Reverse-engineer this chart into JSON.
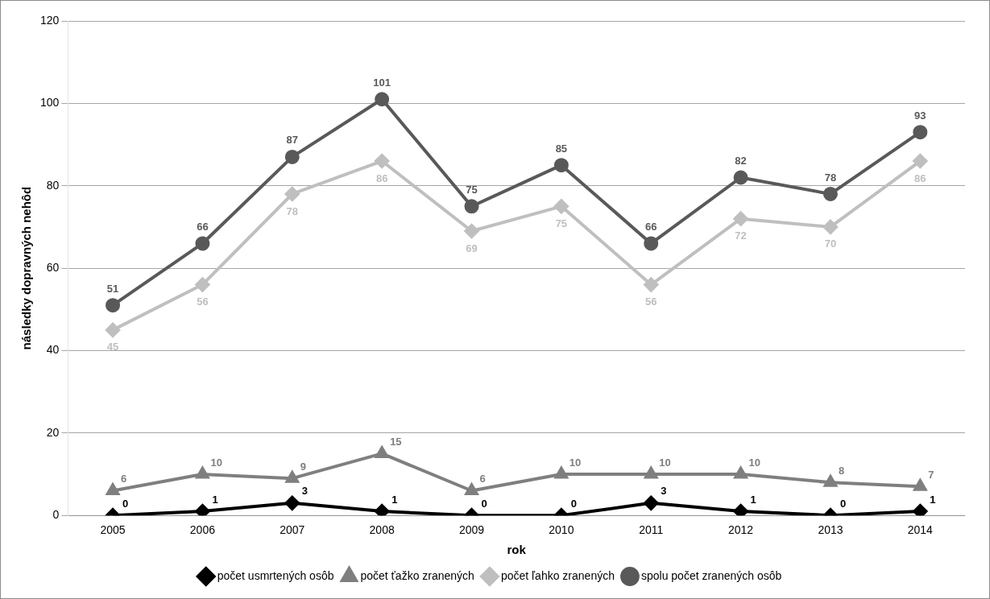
{
  "chart_data": {
    "type": "line",
    "xlabel": "rok",
    "ylabel": "následky dopravných nehôd",
    "categories": [
      "2005",
      "2006",
      "2007",
      "2008",
      "2009",
      "2010",
      "2011",
      "2012",
      "2013",
      "2014"
    ],
    "series": [
      {
        "name": "počet usmrtených osôb",
        "color": "#000000",
        "marker": "diamond",
        "values": [
          0,
          1,
          3,
          1,
          0,
          0,
          3,
          1,
          0,
          1
        ]
      },
      {
        "name": "počet ťažko zranených",
        "color": "#7f7f7f",
        "marker": "triangle",
        "values": [
          6,
          10,
          9,
          15,
          6,
          10,
          10,
          10,
          8,
          7
        ]
      },
      {
        "name": "počet ľahko zranených",
        "color": "#bfbfbf",
        "marker": "diamond",
        "values": [
          45,
          56,
          78,
          86,
          69,
          75,
          56,
          72,
          70,
          86
        ]
      },
      {
        "name": "spolu počet zranených osôb",
        "color": "#595959",
        "marker": "circle",
        "values": [
          51,
          66,
          87,
          101,
          75,
          85,
          66,
          82,
          78,
          93
        ]
      }
    ],
    "ylim": [
      0,
      120
    ],
    "yticks": [
      0,
      20,
      40,
      60,
      80,
      100,
      120
    ],
    "grid": "y",
    "legend": "bottom",
    "data_labels": true
  }
}
